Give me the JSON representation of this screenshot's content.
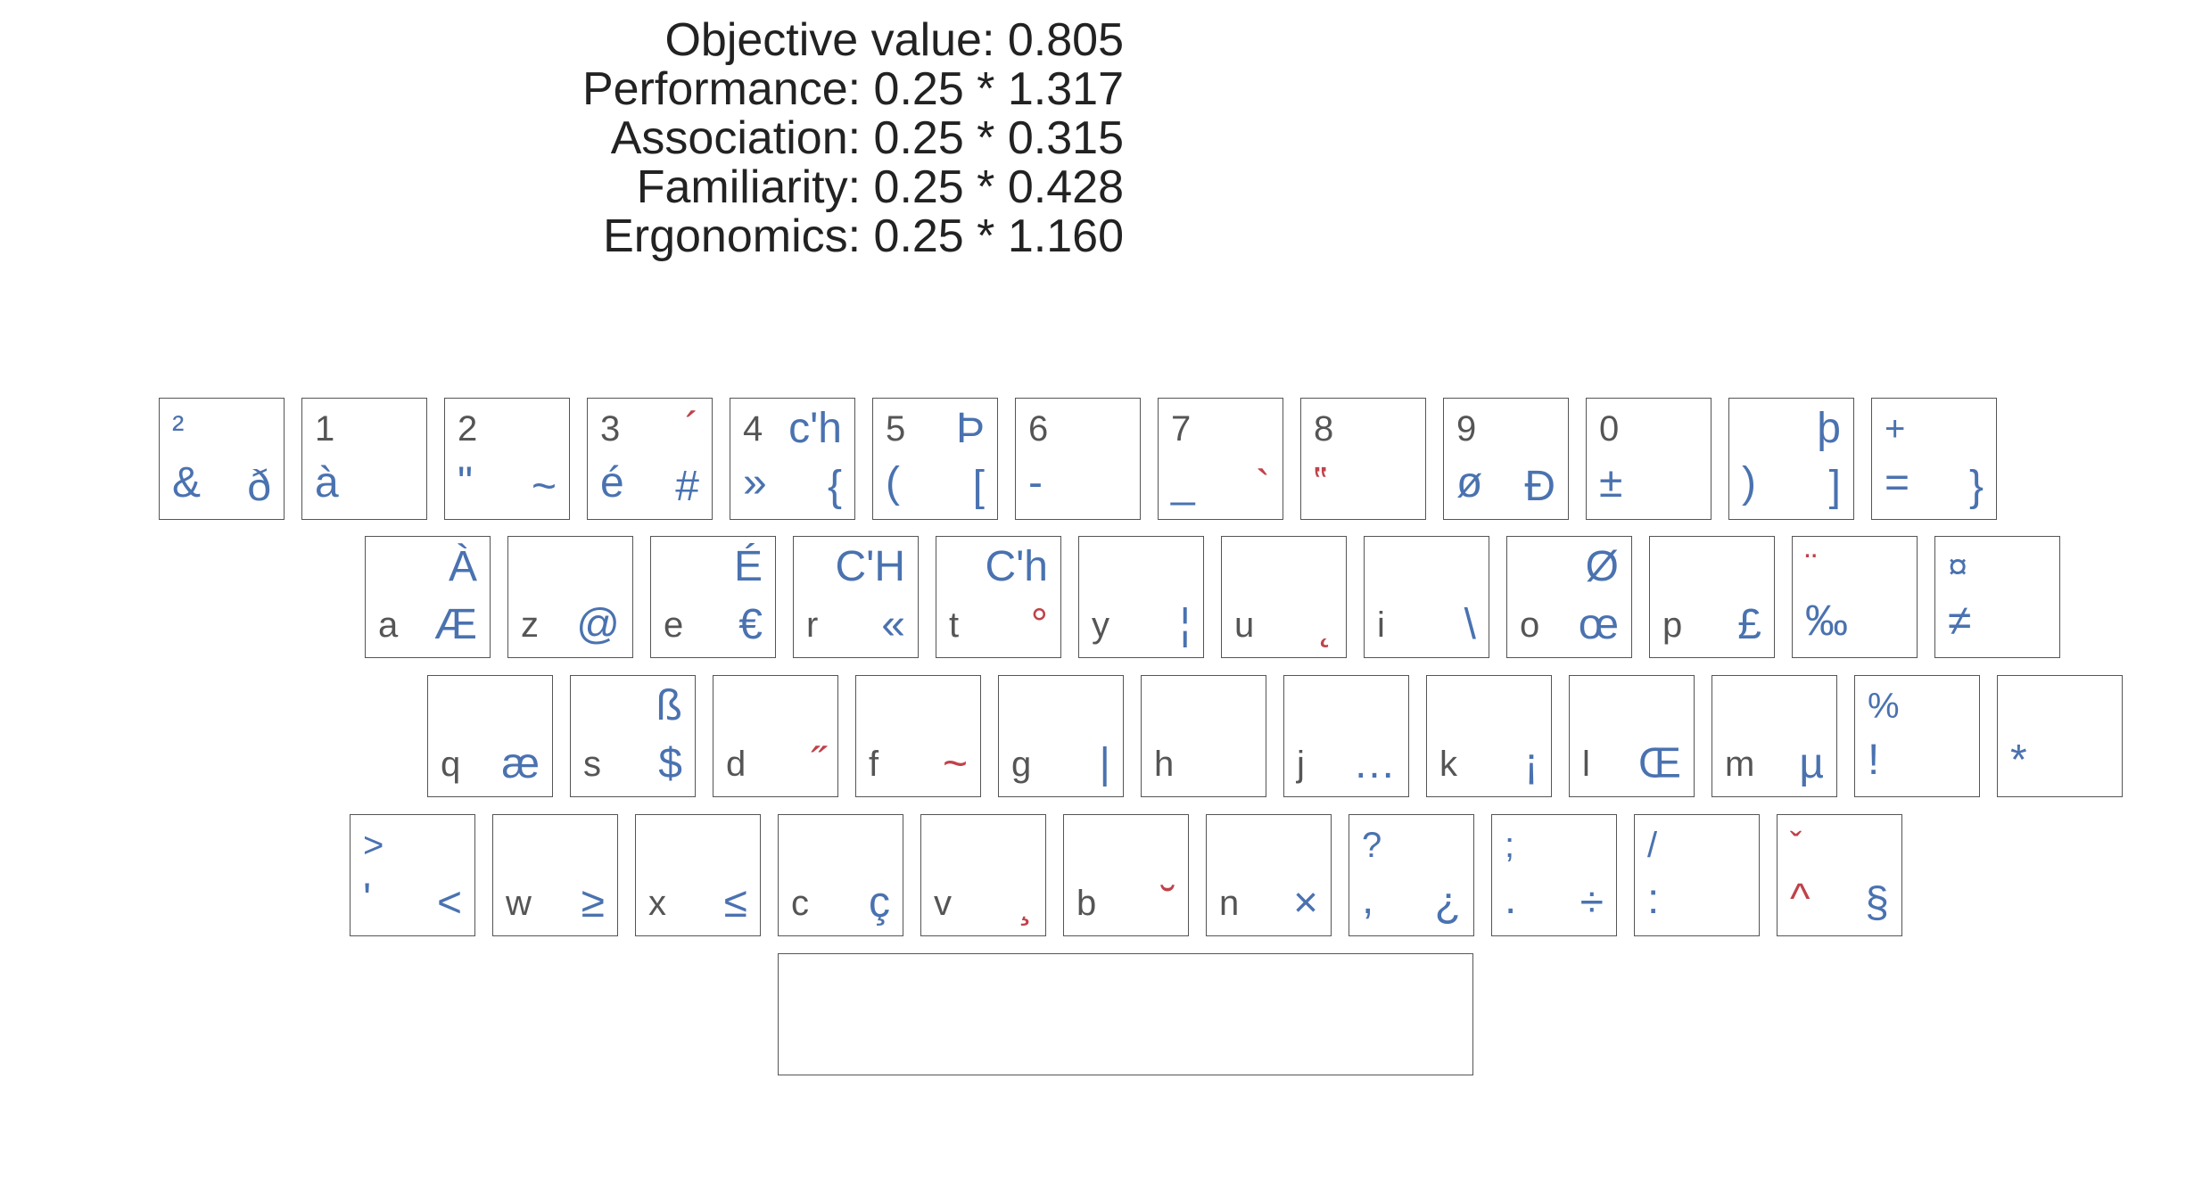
{
  "colors": {
    "base": "#555555",
    "layer": "#4a72b0",
    "dead": "#c0424a",
    "border": "#555555"
  },
  "stats": {
    "objective": "Objective value: 0.805",
    "performance": "Performance: 0.25 * 1.317",
    "association": "Association: 0.25 * 0.315",
    "familiarity": "Familiarity: 0.25 * 0.428",
    "ergonomics": "Ergonomics: 0.25 * 1.160"
  },
  "rows": [
    [
      {
        "tl": "",
        "tr": "",
        "bl": "&",
        "br": "ð",
        "tlb": "²"
      },
      {
        "tl": "1",
        "tr": "",
        "bl": "à",
        "br": ""
      },
      {
        "tl": "2",
        "tr": "",
        "bl": "\"",
        "br": "~"
      },
      {
        "tl": "3",
        "tr": "´",
        "bl": "é",
        "br": "#",
        "trDead": true
      },
      {
        "tl": "4",
        "tr": "c'h",
        "bl": "»",
        "br": "{"
      },
      {
        "tl": "5",
        "tr": "Þ",
        "bl": "(",
        "br": "["
      },
      {
        "tl": "6",
        "tr": "",
        "bl": "-",
        "br": ""
      },
      {
        "tl": "7",
        "tr": "",
        "bl": "_",
        "br": "`",
        "brDead": true
      },
      {
        "tl": "8",
        "tr": "",
        "bl": "‟",
        "br": "",
        "blDead": true
      },
      {
        "tl": "9",
        "tr": "",
        "bl": "ø",
        "br": "Ð"
      },
      {
        "tl": "0",
        "tr": "",
        "bl": "±",
        "br": ""
      },
      {
        "tl": "",
        "tr": "þ",
        "bl": ")",
        "br": "]"
      },
      {
        "tl": "",
        "tr": "",
        "bl": "=",
        "br": "}",
        "tlb": "+"
      }
    ],
    [
      {
        "tl": "",
        "tr": "À",
        "bl": "a",
        "br": "Æ"
      },
      {
        "tl": "",
        "tr": "",
        "bl": "z",
        "br": "@"
      },
      {
        "tl": "",
        "tr": "É",
        "bl": "e",
        "br": "€"
      },
      {
        "tl": "",
        "tr": "C'H",
        "bl": "r",
        "br": "«"
      },
      {
        "tl": "",
        "tr": "C'h",
        "bl": "t",
        "br": "°",
        "brDead": true
      },
      {
        "tl": "",
        "tr": "",
        "bl": "y",
        "br": "¦"
      },
      {
        "tl": "",
        "tr": "",
        "bl": "u",
        "br": "˛",
        "brDead": true
      },
      {
        "tl": "",
        "tr": "",
        "bl": "i",
        "br": "\\"
      },
      {
        "tl": "",
        "tr": "Ø",
        "bl": "o",
        "br": "œ"
      },
      {
        "tl": "",
        "tr": "",
        "bl": "p",
        "br": "£"
      },
      {
        "tl": "",
        "tr": "",
        "bl": "‰",
        "br": "",
        "tlr": "¨",
        "blBlue": true
      },
      {
        "tl": "",
        "tr": "",
        "bl": "≠",
        "br": "",
        "tlb": "¤",
        "blBlue": true
      }
    ],
    [
      {
        "tl": "",
        "tr": "",
        "bl": "q",
        "br": "æ"
      },
      {
        "tl": "",
        "tr": "ß",
        "bl": "s",
        "br": "$"
      },
      {
        "tl": "",
        "tr": "",
        "bl": "d",
        "br": "˝",
        "brDead": true
      },
      {
        "tl": "",
        "tr": "",
        "bl": "f",
        "br": "~",
        "brDead": true
      },
      {
        "tl": "",
        "tr": "",
        "bl": "g",
        "br": "|"
      },
      {
        "tl": "",
        "tr": "",
        "bl": "h",
        "br": ""
      },
      {
        "tl": "",
        "tr": "",
        "bl": "j",
        "br": "…"
      },
      {
        "tl": "",
        "tr": "",
        "bl": "k",
        "br": "¡"
      },
      {
        "tl": "",
        "tr": "",
        "bl": "l",
        "br": "Œ"
      },
      {
        "tl": "",
        "tr": "",
        "bl": "m",
        "br": "µ"
      },
      {
        "tl": "",
        "tr": "",
        "bl": "!",
        "br": "",
        "tlb": "%",
        "blBlue": true
      },
      {
        "tl": "",
        "tr": "",
        "bl": "*",
        "br": "",
        "blBlue": true,
        "mid": true
      }
    ],
    [
      {
        "tl": "",
        "tr": "",
        "bl": "'",
        "br": "<",
        "tlb": ">",
        "blBlue": true
      },
      {
        "tl": "",
        "tr": "",
        "bl": "w",
        "br": "≥"
      },
      {
        "tl": "",
        "tr": "",
        "bl": "x",
        "br": "≤"
      },
      {
        "tl": "",
        "tr": "",
        "bl": "c",
        "br": "ç"
      },
      {
        "tl": "",
        "tr": "",
        "bl": "v",
        "br": "¸",
        "brDead": true
      },
      {
        "tl": "",
        "tr": "",
        "bl": "b",
        "br": "˘",
        "brDead": true
      },
      {
        "tl": "",
        "tr": "",
        "bl": "n",
        "br": "×"
      },
      {
        "tl": "",
        "tr": "",
        "bl": ",",
        "br": "¿",
        "tlb": "?",
        "blBlue": true
      },
      {
        "tl": "",
        "tr": "",
        "bl": ".",
        "br": "÷",
        "tlb": ";",
        "blBlue": true
      },
      {
        "tl": "",
        "tr": "",
        "bl": ":",
        "br": "",
        "tlb": "/",
        "blBlue": true
      },
      {
        "tl": "",
        "tr": "",
        "bl": "^",
        "br": "§",
        "tlr": "ˇ",
        "blDead": true
      }
    ],
    [
      {
        "tl": "",
        "tr": "",
        "bl": "",
        "br": "",
        "space": true
      }
    ]
  ]
}
